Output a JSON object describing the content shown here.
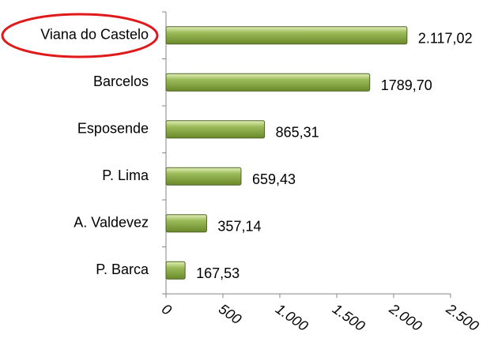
{
  "chart_data": {
    "type": "bar",
    "orientation": "horizontal",
    "categories": [
      "Viana do Castelo",
      "Barcelos",
      "Esposende",
      "P. Lima",
      "A. Valdevez",
      "P. Barca"
    ],
    "values": [
      2117.02,
      1789.7,
      865.31,
      659.43,
      357.14,
      167.53
    ],
    "value_labels": [
      "2.117,02",
      "1789,70",
      "865,31",
      "659,43",
      "357,14",
      "167,53"
    ],
    "color": "#9bbb59",
    "xlim": [
      0,
      2500
    ],
    "xticks": [
      0,
      500,
      {
        "value": 1000,
        "label": "1.000"
      },
      {
        "value": 1500,
        "label": "1.500"
      },
      {
        "value": 2000,
        "label": "2.000"
      },
      {
        "value": 2500,
        "label": "2.500"
      }
    ]
  }
}
